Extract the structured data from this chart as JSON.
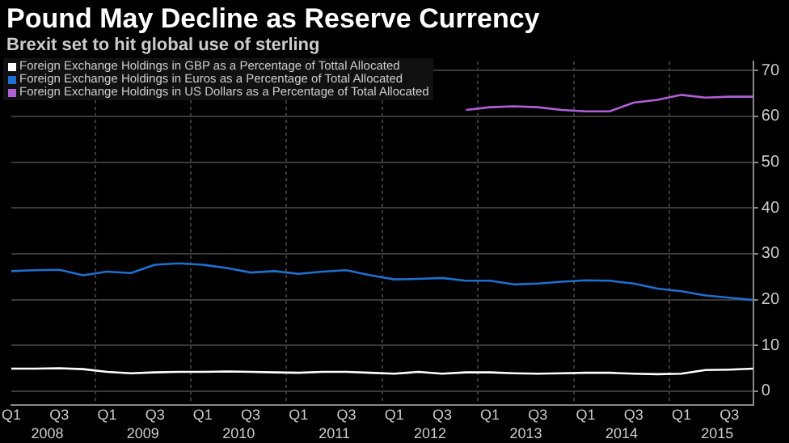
{
  "chart_data": {
    "type": "line",
    "title": "Pound May Decline as Reserve Currency",
    "subtitle": "Brexit set to hit global use of sterling",
    "categories": [
      "Q1",
      null,
      "Q3",
      null,
      "Q1",
      null,
      "Q3",
      null,
      "Q1",
      null,
      "Q3",
      null,
      "Q1",
      null,
      "Q3",
      null,
      "Q1",
      null,
      "Q3",
      null,
      "Q1",
      null,
      "Q3",
      null,
      "Q1",
      null,
      "Q3",
      null,
      "Q1",
      null,
      "Q3",
      null
    ],
    "series": [
      {
        "name": "Foreign Exchange Holdings in GBP as a Percentage of Tottal Allocated",
        "color": "#ffffff",
        "values": [
          4.9,
          4.9,
          5.0,
          4.8,
          4.2,
          3.9,
          4.1,
          4.2,
          4.2,
          4.3,
          4.2,
          4.1,
          4.0,
          4.2,
          4.2,
          4.0,
          3.8,
          4.2,
          3.8,
          4.1,
          4.1,
          3.9,
          3.8,
          3.9,
          4.0,
          4.0,
          3.8,
          3.7,
          3.8,
          4.6,
          4.7,
          4.9
        ]
      },
      {
        "name": "Foreign Exchange Holdings in Euros as a Percentage of Total Allocated",
        "color": "#1f6fd0",
        "values": [
          26.2,
          26.4,
          26.5,
          25.3,
          26.1,
          25.8,
          27.6,
          27.9,
          27.6,
          26.9,
          25.9,
          26.2,
          25.6,
          26.1,
          26.4,
          25.3,
          24.4,
          24.5,
          24.7,
          24.1,
          24.1,
          23.3,
          23.5,
          23.9,
          24.2,
          24.1,
          23.5,
          22.4,
          21.8,
          20.9,
          20.4,
          19.9
        ]
      },
      {
        "name": "Foreign Exchange Holdings in US Dollars as a Percentage of Total Allocated",
        "color": "#b060d8",
        "values": [
          null,
          null,
          null,
          null,
          null,
          null,
          null,
          null,
          null,
          null,
          null,
          null,
          null,
          null,
          null,
          null,
          null,
          null,
          null,
          61.4,
          62.0,
          62.2,
          62.0,
          61.4,
          61.1,
          61.1,
          63.0,
          63.6,
          64.7,
          64.1,
          64.3,
          64.3
        ]
      }
    ],
    "x2lim": [
      2008.125,
      2015.875
    ],
    "x2ticks": [
      {
        "value": 2008.5,
        "label": "2008"
      },
      {
        "value": 2009,
        "label": null
      },
      {
        "value": 2009.5,
        "label": "2009"
      },
      {
        "value": 2010,
        "label": null
      },
      {
        "value": 2010.5,
        "label": "2010"
      },
      {
        "value": 2011,
        "label": null
      },
      {
        "value": 2011.5,
        "label": "2011"
      },
      {
        "value": 2012,
        "label": null
      },
      {
        "value": 2012.5,
        "label": "2012"
      },
      {
        "value": 2013,
        "label": null
      },
      {
        "value": 2013.5,
        "label": "2013"
      },
      {
        "value": 2014,
        "label": null
      },
      {
        "value": 2014.5,
        "label": "2014"
      },
      {
        "value": 2015,
        "label": null
      },
      {
        "value": 2015.5,
        "label": "2015"
      }
    ],
    "ylim": [
      -3,
      72
    ],
    "yticks": [
      0,
      10,
      20,
      30,
      40,
      50,
      60,
      70
    ],
    "grid": true,
    "legend": "top left",
    "marker": "none",
    "line_style": "solid"
  }
}
